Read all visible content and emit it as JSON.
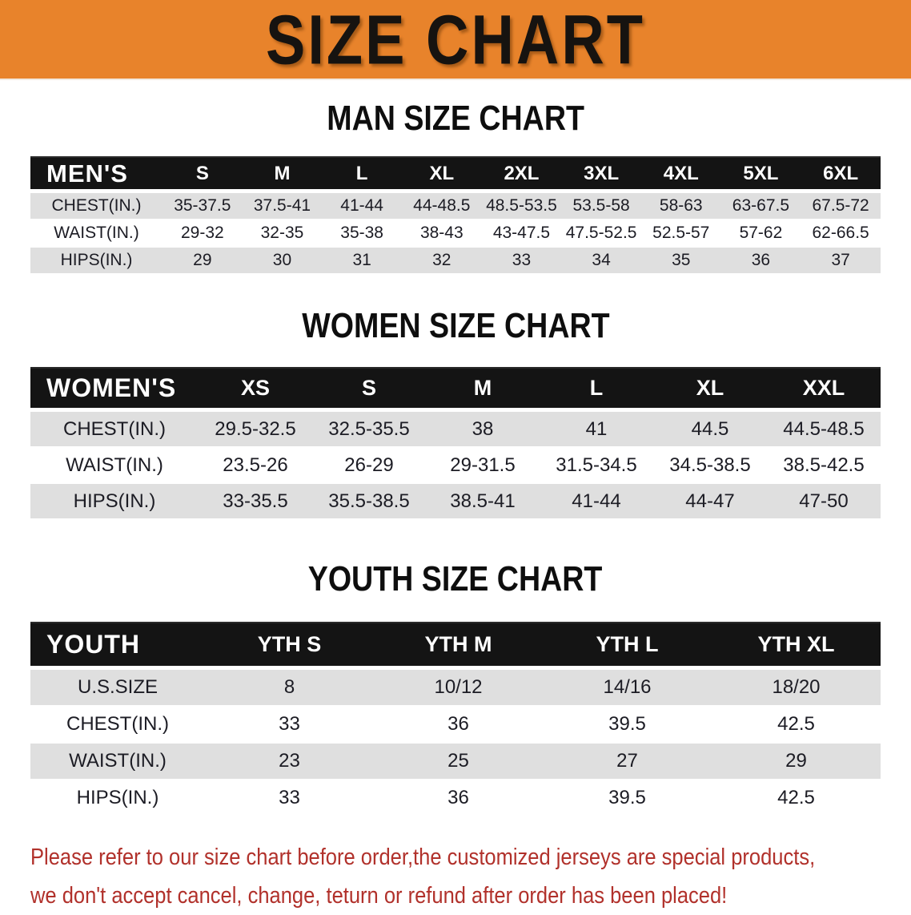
{
  "banner": {
    "title": "SIZE CHART",
    "bg_color": "#E8832B",
    "text_color": "#161310"
  },
  "sections": {
    "men": {
      "heading": "MAN SIZE CHART"
    },
    "women": {
      "heading": "WOMEN SIZE CHART"
    },
    "youth": {
      "heading": "YOUTH SIZE CHART"
    }
  },
  "tables": {
    "men": {
      "corner_label": "MEN'S",
      "sizes": [
        "S",
        "M",
        "L",
        "XL",
        "2XL",
        "3XL",
        "4XL",
        "5XL",
        "6XL"
      ],
      "rows": [
        {
          "label": "CHEST(IN.)",
          "values": [
            "35-37.5",
            "37.5-41",
            "41-44",
            "44-48.5",
            "48.5-53.5",
            "53.5-58",
            "58-63",
            "63-67.5",
            "67.5-72"
          ]
        },
        {
          "label": "WAIST(IN.)",
          "values": [
            "29-32",
            "32-35",
            "35-38",
            "38-43",
            "43-47.5",
            "47.5-52.5",
            "52.5-57",
            "57-62",
            "62-66.5"
          ]
        },
        {
          "label": "HIPS(IN.)",
          "values": [
            "29",
            "30",
            "31",
            "32",
            "33",
            "34",
            "35",
            "36",
            "37"
          ]
        }
      ]
    },
    "women": {
      "corner_label": "WOMEN'S",
      "sizes": [
        "XS",
        "S",
        "M",
        "L",
        "XL",
        "XXL"
      ],
      "rows": [
        {
          "label": "CHEST(IN.)",
          "values": [
            "29.5-32.5",
            "32.5-35.5",
            "38",
            "41",
            "44.5",
            "44.5-48.5"
          ]
        },
        {
          "label": "WAIST(IN.)",
          "values": [
            "23.5-26",
            "26-29",
            "29-31.5",
            "31.5-34.5",
            "34.5-38.5",
            "38.5-42.5"
          ]
        },
        {
          "label": "HIPS(IN.)",
          "values": [
            "33-35.5",
            "35.5-38.5",
            "38.5-41",
            "41-44",
            "44-47",
            "47-50"
          ]
        }
      ]
    },
    "youth": {
      "corner_label": "YOUTH",
      "sizes": [
        "YTH S",
        "YTH M",
        "YTH L",
        "YTH XL"
      ],
      "rows": [
        {
          "label": "U.S.SIZE",
          "values": [
            "8",
            "10/12",
            "14/16",
            "18/20"
          ]
        },
        {
          "label": "CHEST(IN.)",
          "values": [
            "33",
            "36",
            "39.5",
            "42.5"
          ]
        },
        {
          "label": "WAIST(IN.)",
          "values": [
            "23",
            "25",
            "27",
            "29"
          ]
        },
        {
          "label": "HIPS(IN.)",
          "values": [
            "33",
            "36",
            "39.5",
            "42.5"
          ]
        }
      ]
    }
  },
  "footnote": {
    "color": "#B1312B",
    "lines": [
      "Please refer to our size chart before order,the customized jerseys are special products,",
      "we don't accept cancel, change, teturn or refund after order has been placed!"
    ]
  }
}
